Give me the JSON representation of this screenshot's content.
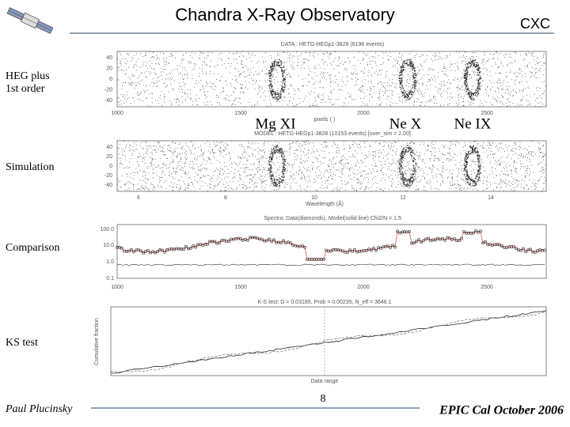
{
  "header": {
    "title": "Chandra X-Ray Observatory",
    "org": "CXC"
  },
  "side_labels": [
    [
      "HEG plus",
      "1st order"
    ],
    [
      "Simulation"
    ],
    [
      "Comparison"
    ],
    [
      "KS test"
    ]
  ],
  "lines": [
    "Mg XI",
    "Ne X",
    "Ne IX"
  ],
  "plots": {
    "data": {
      "title": "DATA : HETG-HEGp1-3828   (6196 events)",
      "xticks": [
        "1000",
        "1500",
        "2000",
        "2500"
      ],
      "yticks": [
        "40",
        "20",
        "0",
        "-20",
        "-40"
      ],
      "xlabel": "pixels ( )"
    },
    "model": {
      "title": "MODEL : HETG-HEGp1-3828   (10153 events)   [over_sim = 2.00]",
      "xticks": [
        "6",
        "8",
        "10",
        "12",
        "14"
      ],
      "yticks": [
        "40",
        "20",
        "0",
        "-20",
        "-40"
      ],
      "xlabel": "Wavelength (Å)"
    },
    "spectrum": {
      "title": "Spectra: Data(diamonds), Model(solid line)   Chi2/N = 1.5",
      "xticks": [
        "1000",
        "1500",
        "2000",
        "2500"
      ],
      "yticks": [
        "100.0",
        "10.0",
        "1.0",
        "0.1"
      ]
    },
    "ks": {
      "title": "K-S test:  D = 0.03185,  Prob = 0.00235,  N_eff = 3646.1",
      "ylabel": "Cumulative fraction",
      "xlabel": "Data range"
    }
  },
  "footer": {
    "author": "Paul Plucinsky",
    "page": "8",
    "event": "EPIC Cal October 2006"
  }
}
